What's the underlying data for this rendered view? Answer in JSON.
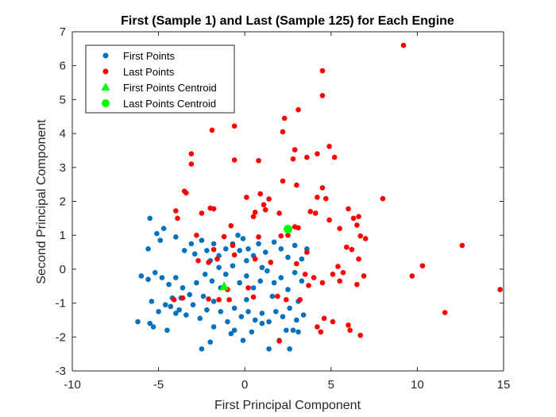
{
  "chart_data": {
    "type": "scatter",
    "title": "First (Sample 1) and Last (Sample 125) for Each Engine",
    "xlabel": "First Principal Component",
    "ylabel": "Second Principal Component",
    "xlim": [
      -10,
      15
    ],
    "ylim": [
      -3,
      7
    ],
    "xticks": [
      -10,
      -5,
      0,
      5,
      10,
      15
    ],
    "yticks": [
      -3,
      -2,
      -1,
      0,
      1,
      2,
      3,
      4,
      5,
      6,
      7
    ],
    "xtick_labels": [
      "-10",
      "-5",
      "0",
      "5",
      "10",
      "15"
    ],
    "ytick_labels": [
      "-3",
      "-2",
      "-1",
      "0",
      "1",
      "2",
      "3",
      "4",
      "5",
      "6",
      "7"
    ],
    "grid": false,
    "legend_position": "top-left",
    "series": [
      {
        "name": "First Points",
        "color": "#0072BD",
        "marker": "circle",
        "points": [
          [
            -5.5,
            1.5
          ],
          [
            -5.1,
            1.05
          ],
          [
            -4.7,
            1.2
          ],
          [
            -4.9,
            0.85
          ],
          [
            -5.6,
            0.6
          ],
          [
            -4.0,
            0.95
          ],
          [
            -3.5,
            0.55
          ],
          [
            -3.1,
            0.75
          ],
          [
            -2.9,
            0.45
          ],
          [
            -2.5,
            0.85
          ],
          [
            -2.2,
            0.55
          ],
          [
            -1.8,
            0.75
          ],
          [
            -1.5,
            0.4
          ],
          [
            -1.1,
            0.6
          ],
          [
            -0.7,
            0.75
          ],
          [
            -0.4,
            1.0
          ],
          [
            -0.1,
            0.9
          ],
          [
            0.2,
            0.6
          ],
          [
            0.5,
            0.4
          ],
          [
            0.8,
            0.75
          ],
          [
            1.2,
            0.5
          ],
          [
            1.7,
            0.8
          ],
          [
            2.1,
            0.6
          ],
          [
            2.5,
            0.35
          ],
          [
            2.9,
            0.7
          ],
          [
            3.3,
            0.3
          ],
          [
            3.6,
            0.6
          ],
          [
            -0.3,
            0.55
          ],
          [
            0.1,
            0.25
          ],
          [
            -2.0,
            0.25
          ],
          [
            -6.0,
            -0.2
          ],
          [
            -5.6,
            -0.3
          ],
          [
            -5.2,
            -0.1
          ],
          [
            -4.8,
            -0.25
          ],
          [
            -4.4,
            -0.45
          ],
          [
            -4.0,
            -0.25
          ],
          [
            -3.6,
            -0.55
          ],
          [
            -3.2,
            -0.75
          ],
          [
            -2.8,
            -0.4
          ],
          [
            -2.3,
            -0.15
          ],
          [
            -1.9,
            -0.35
          ],
          [
            -1.5,
            0.05
          ],
          [
            -1.1,
            -0.15
          ],
          [
            -0.7,
            0.1
          ],
          [
            -0.3,
            -0.4
          ],
          [
            0.1,
            -0.2
          ],
          [
            0.5,
            -0.55
          ],
          [
            0.9,
            -0.35
          ],
          [
            1.3,
            -0.05
          ],
          [
            1.7,
            -0.4
          ],
          [
            2.1,
            -0.25
          ],
          [
            2.5,
            -0.6
          ],
          [
            2.9,
            -0.1
          ],
          [
            3.3,
            -0.35
          ],
          [
            -5.4,
            -0.95
          ],
          [
            -5.0,
            -1.25
          ],
          [
            -4.6,
            -1.05
          ],
          [
            -4.2,
            -0.85
          ],
          [
            -3.8,
            -1.2
          ],
          [
            -3.4,
            -1.35
          ],
          [
            -3.0,
            -1.05
          ],
          [
            -2.6,
            -1.45
          ],
          [
            -2.2,
            -1.2
          ],
          [
            -1.8,
            -0.95
          ],
          [
            -1.4,
            -1.25
          ],
          [
            -1.0,
            -1.55
          ],
          [
            -0.6,
            -1.15
          ],
          [
            -0.2,
            -1.4
          ],
          [
            0.2,
            -1.25
          ],
          [
            0.6,
            -1.5
          ],
          [
            1.0,
            -1.3
          ],
          [
            1.4,
            -1.55
          ],
          [
            1.8,
            -1.25
          ],
          [
            2.2,
            -1.4
          ],
          [
            2.6,
            -1.15
          ],
          [
            3.0,
            -1.5
          ],
          [
            3.4,
            -1.35
          ],
          [
            -5.3,
            -1.7
          ],
          [
            -4.5,
            -1.8
          ],
          [
            -2.0,
            -2.15
          ],
          [
            -0.8,
            -1.9
          ],
          [
            -0.1,
            -2.1
          ],
          [
            0.4,
            -1.85
          ],
          [
            1.4,
            -2.35
          ],
          [
            2.0,
            -2.1
          ],
          [
            2.6,
            -2.35
          ],
          [
            3.1,
            -1.85
          ],
          [
            -6.2,
            -1.55
          ],
          [
            -2.5,
            -2.35
          ],
          [
            -1.8,
            -1.7
          ],
          [
            -0.6,
            -1.8
          ],
          [
            1.0,
            -1.6
          ],
          [
            2.4,
            -1.8
          ],
          [
            -4.3,
            -1.1
          ],
          [
            -5.5,
            -1.6
          ],
          [
            1.0,
            0.05
          ],
          [
            -3.7,
            -0.85
          ],
          [
            -2.4,
            -0.8
          ],
          [
            1.6,
            -0.8
          ],
          [
            0.1,
            -0.9
          ],
          [
            3.1,
            -0.95
          ],
          [
            -1.4,
            -0.55
          ],
          [
            2.8,
            -1.8
          ],
          [
            -4.0,
            -1.3
          ]
        ]
      },
      {
        "name": "Last Points",
        "color": "#FF0000",
        "marker": "circle",
        "points": [
          [
            9.2,
            6.6
          ],
          [
            4.5,
            5.85
          ],
          [
            4.5,
            5.12
          ],
          [
            3.1,
            4.7
          ],
          [
            2.3,
            4.45
          ],
          [
            2.2,
            4.05
          ],
          [
            -0.6,
            4.22
          ],
          [
            -1.9,
            4.1
          ],
          [
            4.9,
            3.62
          ],
          [
            2.9,
            3.52
          ],
          [
            4.2,
            3.4
          ],
          [
            5.2,
            3.3
          ],
          [
            -3.1,
            3.4
          ],
          [
            -3.1,
            3.1
          ],
          [
            -0.6,
            3.22
          ],
          [
            0.8,
            3.2
          ],
          [
            2.8,
            3.25
          ],
          [
            3.6,
            3.3
          ],
          [
            2.2,
            2.6
          ],
          [
            3.0,
            2.48
          ],
          [
            4.5,
            2.4
          ],
          [
            -3.5,
            2.3
          ],
          [
            -3.4,
            2.25
          ],
          [
            0.1,
            2.12
          ],
          [
            0.9,
            2.22
          ],
          [
            1.4,
            2.07
          ],
          [
            1.1,
            1.9
          ],
          [
            4.2,
            2.12
          ],
          [
            4.7,
            2.08
          ],
          [
            8.0,
            2.08
          ],
          [
            -4.0,
            1.72
          ],
          [
            -2.0,
            1.8
          ],
          [
            -1.8,
            1.78
          ],
          [
            -2.5,
            1.65
          ],
          [
            0.6,
            1.68
          ],
          [
            1.2,
            1.75
          ],
          [
            2.0,
            1.65
          ],
          [
            3.8,
            1.7
          ],
          [
            4.1,
            1.65
          ],
          [
            6.0,
            1.78
          ],
          [
            6.3,
            1.5
          ],
          [
            6.6,
            1.55
          ],
          [
            6.5,
            1.3
          ],
          [
            5.5,
            1.2
          ],
          [
            4.9,
            1.45
          ],
          [
            -3.9,
            1.5
          ],
          [
            -0.8,
            1.28
          ],
          [
            0.5,
            1.55
          ],
          [
            2.9,
            1.25
          ],
          [
            3.1,
            1.22
          ],
          [
            6.7,
            0.98
          ],
          [
            7.0,
            0.9
          ],
          [
            12.6,
            0.7
          ],
          [
            10.3,
            0.1
          ],
          [
            9.7,
            -0.2
          ],
          [
            11.6,
            -1.28
          ],
          [
            14.8,
            -0.6
          ],
          [
            -1.2,
            0.96
          ],
          [
            -2.8,
            1.0
          ],
          [
            0.8,
            0.95
          ],
          [
            2.1,
            0.98
          ],
          [
            2.5,
            1.0
          ],
          [
            5.9,
            0.65
          ],
          [
            6.2,
            0.58
          ],
          [
            3.6,
            0.5
          ],
          [
            -0.7,
            0.7
          ],
          [
            -1.8,
            0.58
          ],
          [
            -1.6,
            0.3
          ],
          [
            -0.6,
            0.42
          ],
          [
            -2.7,
            0.25
          ],
          [
            -2.1,
            0.2
          ],
          [
            0.6,
            0.3
          ],
          [
            1.5,
            0.2
          ],
          [
            3.0,
            0.16
          ],
          [
            5.4,
            0.08
          ],
          [
            6.6,
            0.3
          ],
          [
            3.5,
            -0.15
          ],
          [
            4.0,
            -0.25
          ],
          [
            5.1,
            -0.15
          ],
          [
            5.7,
            -0.1
          ],
          [
            6.9,
            -0.2
          ],
          [
            3.7,
            -0.48
          ],
          [
            4.5,
            -0.4
          ],
          [
            5.5,
            -0.35
          ],
          [
            6.5,
            -0.45
          ],
          [
            0.2,
            -0.55
          ],
          [
            -1.0,
            -0.6
          ],
          [
            -3.6,
            -0.85
          ],
          [
            -4.1,
            -0.9
          ],
          [
            -2.1,
            -0.88
          ],
          [
            -0.9,
            -0.9
          ],
          [
            1.9,
            -0.8
          ],
          [
            2.4,
            -0.9
          ],
          [
            0.5,
            -0.82
          ],
          [
            4.6,
            -1.45
          ],
          [
            5.1,
            -1.55
          ],
          [
            6.0,
            -1.65
          ],
          [
            6.1,
            -1.8
          ],
          [
            6.7,
            -1.95
          ],
          [
            2.0,
            -2.12
          ],
          [
            4.2,
            -1.7
          ],
          [
            4.4,
            -1.85
          ],
          [
            -1.5,
            -0.9
          ],
          [
            3.2,
            -0.9
          ]
        ]
      },
      {
        "name": "First Points Centroid",
        "color": "#00FF00",
        "marker": "triangle",
        "points": [
          [
            -1.2,
            -0.5
          ]
        ]
      },
      {
        "name": "Last Points Centroid",
        "color": "#00FF00",
        "marker": "circle-large",
        "points": [
          [
            2.5,
            1.18
          ]
        ]
      }
    ]
  }
}
